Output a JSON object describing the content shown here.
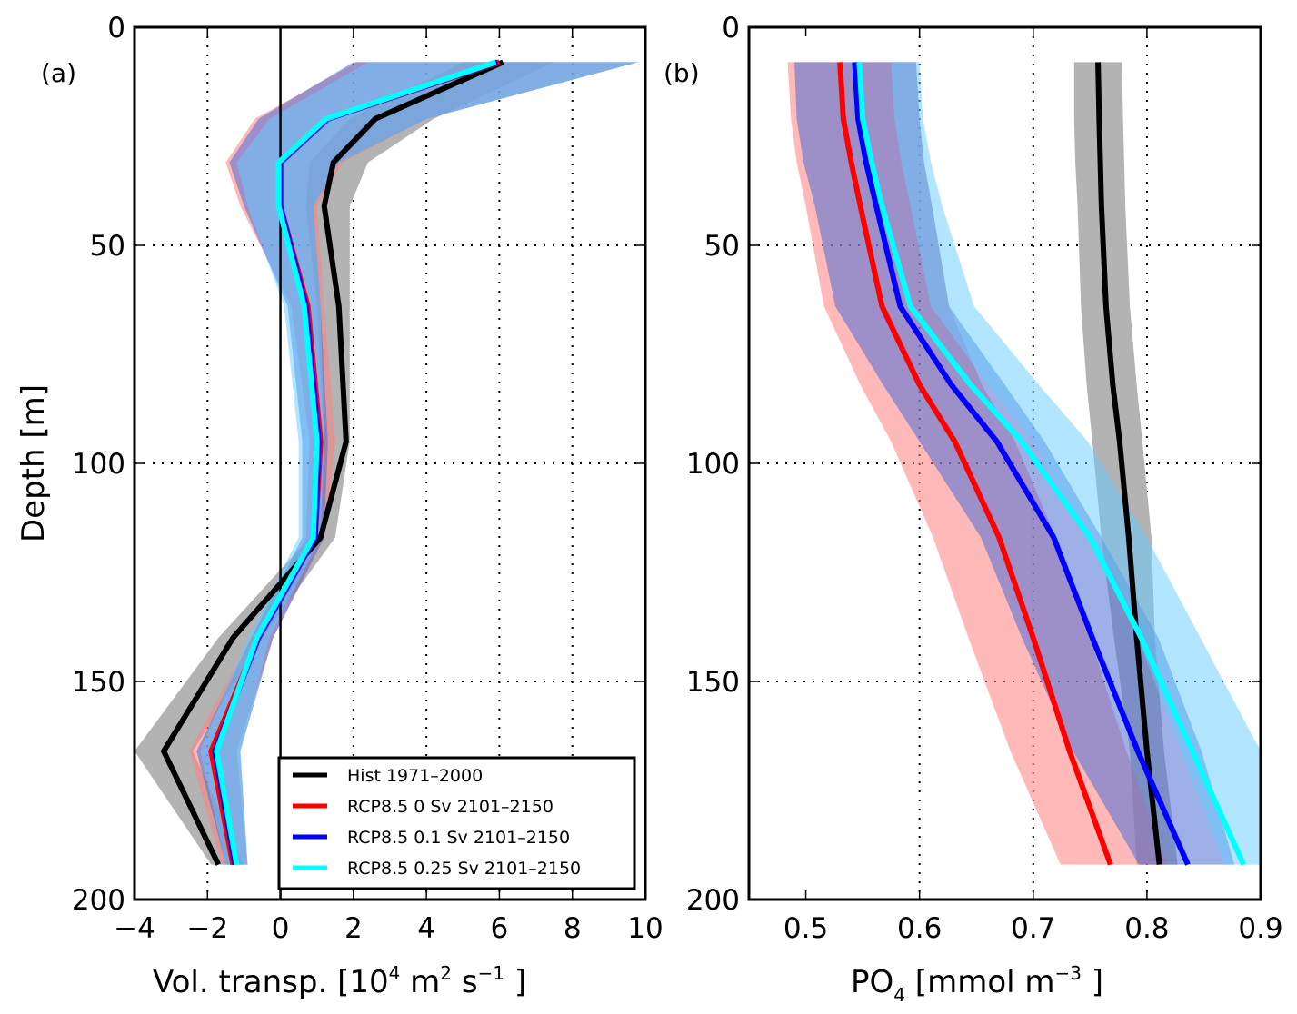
{
  "chart_data": [
    {
      "panel_label": "(a)",
      "type": "line",
      "xlabel": "Vol. transp. [10^4 m^2 s^-1]",
      "xlabel_parts": {
        "base": "Vol. transp. [10",
        "sup1": "4",
        "mid1": "  m",
        "sup2": "2",
        "mid2": "  s",
        "sup3": "−1",
        "end": " ]"
      },
      "ylabel": "Depth [m]",
      "xlim": [
        -4,
        10
      ],
      "ylim": [
        200,
        0
      ],
      "xticks": [
        -4,
        -2,
        0,
        2,
        4,
        6,
        8,
        10
      ],
      "xtick_labels": [
        "−4",
        "−2",
        "0",
        "2",
        "4",
        "6",
        "8",
        "10"
      ],
      "yticks": [
        0,
        50,
        100,
        150,
        200
      ],
      "ytick_labels": [
        "0",
        "50",
        "100",
        "150",
        "200"
      ],
      "grid": true,
      "zero_line": true,
      "legend_position": "bottom-right",
      "depth": [
        8,
        21,
        31,
        41,
        64,
        95,
        117,
        140,
        166,
        192
      ],
      "series": [
        {
          "name": "Hist 1971–2000",
          "color": "#000000",
          "band_color": "#b3b3b3",
          "values": [
            6.1,
            2.6,
            1.45,
            1.2,
            1.6,
            1.8,
            1.1,
            -1.3,
            -3.2,
            -1.7
          ],
          "lower": [
            5.0,
            1.9,
            0.8,
            0.7,
            1.0,
            1.2,
            0.8,
            -1.7,
            -4.1,
            -1.9
          ],
          "upper": [
            7.5,
            4.2,
            2.4,
            1.9,
            1.9,
            1.9,
            1.5,
            -0.5,
            -2.4,
            -1.0
          ]
        },
        {
          "name": "RCP8.5 0 Sv 2101–2150",
          "color": "#ff0000",
          "band_color": "#ffb3b3",
          "values": [
            6.0,
            1.3,
            0.0,
            0.0,
            0.75,
            1.1,
            0.95,
            -0.6,
            -1.9,
            -1.3
          ],
          "lower": [
            2.1,
            -0.7,
            -1.5,
            -1.1,
            0.3,
            0.8,
            0.7,
            -0.8,
            -2.5,
            -1.6
          ],
          "upper": [
            9.8,
            4.0,
            1.7,
            1.0,
            1.2,
            1.5,
            1.2,
            -0.2,
            -1.2,
            -0.9
          ]
        },
        {
          "name": "RCP8.5 0.1 Sv 2101–2150",
          "color": "#0000ff",
          "band_color": "#b3b3ff",
          "values": [
            5.95,
            1.3,
            0.0,
            0.0,
            0.7,
            1.05,
            0.95,
            -0.6,
            -1.8,
            -1.25
          ],
          "lower": [
            2.0,
            -0.6,
            -1.4,
            -1.0,
            0.2,
            0.6,
            0.6,
            -0.8,
            -2.3,
            -1.5
          ],
          "upper": [
            9.8,
            4.0,
            1.6,
            0.9,
            1.1,
            1.3,
            1.2,
            -0.2,
            -1.1,
            -0.9
          ]
        },
        {
          "name": "RCP8.5 0.25 Sv 2101–2150",
          "color": "#00ffff",
          "band_color": "#b3ffff",
          "values": [
            5.9,
            1.25,
            -0.05,
            -0.05,
            0.65,
            1.0,
            0.9,
            -0.65,
            -1.75,
            -1.2
          ],
          "lower": [
            2.4,
            -0.3,
            -1.2,
            -0.9,
            0.1,
            0.5,
            0.5,
            -0.9,
            -2.2,
            -1.5
          ],
          "upper": [
            9.8,
            4.0,
            1.6,
            0.9,
            1.1,
            1.2,
            1.1,
            -0.3,
            -1.1,
            -0.9
          ]
        }
      ]
    },
    {
      "panel_label": "(b)",
      "type": "line",
      "xlabel": "PO4 [mmol m^-3]",
      "xlabel_parts": {
        "base": "PO",
        "sub": "4",
        "mid": " [mmol m",
        "sup": "−3",
        "end": " ]"
      },
      "ylabel": "",
      "xlim": [
        0.45,
        0.9
      ],
      "ylim": [
        200,
        0
      ],
      "xticks": [
        0.5,
        0.6,
        0.7,
        0.8,
        0.9
      ],
      "xtick_labels": [
        "0.5",
        "0.6",
        "0.7",
        "0.8",
        "0.9"
      ],
      "yticks": [
        0,
        50,
        100,
        150,
        200
      ],
      "ytick_labels": [
        "0",
        "50",
        "100",
        "150",
        "200"
      ],
      "grid": true,
      "depth": [
        8,
        21,
        31,
        41,
        64,
        82,
        95,
        117,
        140,
        166,
        192
      ],
      "series": [
        {
          "name": "Hist 1971–2000",
          "color": "#000000",
          "band_color": "#b3b3b3",
          "values": [
            0.757,
            0.758,
            0.759,
            0.76,
            0.764,
            0.77,
            0.776,
            0.784,
            0.791,
            0.8,
            0.811
          ],
          "lower": [
            0.736,
            0.736,
            0.737,
            0.739,
            0.742,
            0.747,
            0.752,
            0.76,
            0.771,
            0.785,
            0.791
          ],
          "upper": [
            0.778,
            0.779,
            0.78,
            0.781,
            0.785,
            0.791,
            0.796,
            0.804,
            0.807,
            0.815,
            0.827
          ]
        },
        {
          "name": "RCP8.5 0 Sv 2101–2150",
          "color": "#ff0000",
          "band_color": "#ffb3b3",
          "values": [
            0.53,
            0.533,
            0.54,
            0.548,
            0.567,
            0.6,
            0.631,
            0.67,
            0.7,
            0.732,
            0.768
          ],
          "lower": [
            0.484,
            0.487,
            0.492,
            0.5,
            0.516,
            0.548,
            0.575,
            0.612,
            0.643,
            0.68,
            0.724
          ],
          "upper": [
            0.597,
            0.6,
            0.604,
            0.611,
            0.626,
            0.655,
            0.684,
            0.72,
            0.75,
            0.782,
            0.818
          ]
        },
        {
          "name": "RCP8.5 0.1 Sv 2101–2150",
          "color": "#0000ff",
          "band_color": "#b3b3ff",
          "values": [
            0.543,
            0.546,
            0.553,
            0.562,
            0.583,
            0.628,
            0.668,
            0.718,
            0.752,
            0.792,
            0.836
          ],
          "lower": [
            0.49,
            0.492,
            0.498,
            0.508,
            0.526,
            0.568,
            0.6,
            0.654,
            0.69,
            0.735,
            0.793
          ],
          "upper": [
            0.597,
            0.6,
            0.604,
            0.611,
            0.626,
            0.675,
            0.71,
            0.76,
            0.81,
            0.848,
            0.877
          ]
        },
        {
          "name": "RCP8.5 0.25 Sv 2101–2150",
          "color": "#00ffff",
          "band_color": "#b3ffff",
          "values": [
            0.547,
            0.55,
            0.558,
            0.567,
            0.592,
            0.645,
            0.69,
            0.75,
            0.795,
            0.84,
            0.885
          ],
          "lower": [
            0.575,
            0.578,
            0.584,
            0.592,
            0.61,
            0.66,
            0.7,
            0.748,
            0.792,
            0.83,
            0.868
          ],
          "upper": [
            0.6,
            0.603,
            0.61,
            0.62,
            0.648,
            0.705,
            0.748,
            0.8,
            0.847,
            0.9,
            0.9
          ]
        }
      ]
    }
  ]
}
